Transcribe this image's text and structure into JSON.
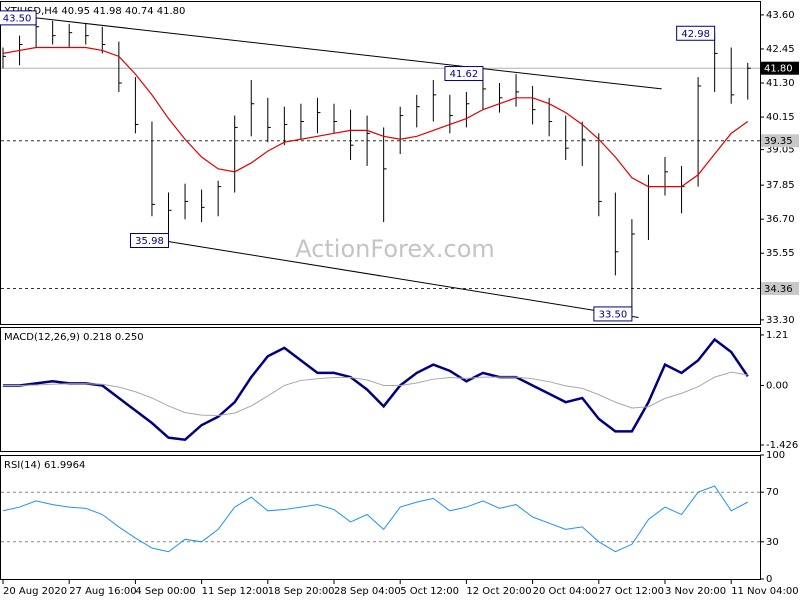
{
  "chart_data": [
    {
      "type": "ohlc",
      "title": "XTIUSD,H4  40.95 41.98 40.74 41.80",
      "watermark": "ActionForex.com",
      "categories": [
        "20 Aug 2020",
        null,
        null,
        null,
        "27 Aug 16:00",
        null,
        null,
        null,
        "4 Sep 00:00",
        null,
        null,
        null,
        "11 Sep 12:00",
        null,
        null,
        null,
        "18 Sep 20:00",
        null,
        null,
        null,
        "28 Sep 04:00",
        null,
        null,
        null,
        "5 Oct 12:00",
        null,
        null,
        null,
        "12 Oct 20:00",
        null,
        null,
        null,
        "20 Oct 04:00",
        null,
        null,
        null,
        "27 Oct 12:00",
        null,
        null,
        null,
        "3 Nov 20:00",
        null,
        null,
        null,
        "11 Nov 04:00",
        null
      ],
      "high": [
        42.5,
        42.9,
        43.5,
        43.4,
        43.3,
        43.3,
        43.2,
        42.7,
        41.5,
        40.0,
        37.6,
        37.9,
        37.7,
        38.0,
        40.2,
        41.4,
        40.8,
        40.5,
        40.6,
        40.8,
        40.6,
        40.4,
        40.2,
        39.8,
        40.5,
        40.9,
        41.4,
        40.9,
        41.0,
        41.62,
        41.3,
        41.6,
        41.2,
        40.8,
        40.2,
        40.0,
        39.6,
        37.6,
        36.7,
        38.2,
        38.8,
        38.5,
        41.5,
        42.98,
        42.5,
        41.98
      ],
      "low": [
        41.8,
        41.9,
        42.5,
        42.6,
        42.5,
        42.6,
        42.3,
        41.0,
        39.6,
        36.8,
        35.98,
        36.7,
        36.6,
        36.8,
        37.6,
        39.5,
        39.3,
        39.2,
        39.4,
        39.6,
        39.6,
        38.7,
        38.5,
        36.6,
        38.9,
        39.8,
        40.0,
        39.6,
        39.8,
        40.4,
        40.3,
        40.5,
        39.9,
        39.5,
        38.7,
        38.5,
        36.8,
        34.8,
        33.5,
        36.0,
        37.5,
        36.9,
        37.8,
        41.0,
        40.6,
        40.74
      ],
      "close": [
        42.2,
        42.6,
        43.2,
        42.9,
        43.0,
        42.9,
        42.6,
        41.3,
        39.9,
        37.2,
        37.0,
        37.3,
        37.1,
        37.8,
        39.8,
        40.6,
        39.8,
        39.9,
        40.0,
        40.3,
        40.0,
        39.2,
        39.6,
        38.4,
        40.2,
        40.5,
        40.9,
        40.2,
        40.6,
        41.1,
        40.8,
        41.0,
        40.4,
        40.0,
        39.1,
        39.4,
        37.3,
        35.6,
        36.2,
        37.8,
        38.3,
        37.8,
        41.2,
        42.3,
        40.9,
        41.8
      ],
      "bar_color": "#000000",
      "ma": {
        "color": "#e00000",
        "values": [
          42.3,
          42.4,
          42.5,
          42.5,
          42.5,
          42.5,
          42.4,
          42.2,
          41.6,
          40.9,
          40.1,
          39.4,
          38.8,
          38.4,
          38.3,
          38.6,
          39.0,
          39.3,
          39.4,
          39.5,
          39.6,
          39.7,
          39.7,
          39.5,
          39.4,
          39.5,
          39.7,
          39.9,
          40.1,
          40.4,
          40.6,
          40.8,
          40.8,
          40.6,
          40.3,
          39.9,
          39.4,
          38.8,
          38.1,
          37.8,
          37.8,
          37.8,
          38.2,
          38.9,
          39.6,
          40.0
        ]
      },
      "ylim": [
        33.16,
        44.07
      ],
      "yticks": [
        {
          "value": 43.6,
          "label": "43.60"
        },
        42.45,
        {
          "value": 41.3,
          "label": "41.30"
        },
        40.15,
        39.05,
        37.85,
        {
          "value": 36.7,
          "label": "36.70"
        },
        35.55,
        {
          "value": 33.3,
          "label": "33.30"
        }
      ],
      "levels": [
        39.35,
        34.36
      ],
      "last_price": {
        "value": 41.8,
        "label": "41.80"
      },
      "trendlines": [
        {
          "x": [
            2,
            39.8
          ],
          "y": [
            43.5,
            41.1
          ]
        },
        {
          "x": [
            9.6,
            38.4
          ],
          "y": [
            35.98,
            33.38
          ]
        }
      ],
      "annotations": [
        {
          "index": 2,
          "value": 43.5,
          "label": "43.50"
        },
        {
          "index": 43,
          "value": 42.98
        },
        {
          "index": 29,
          "value": 41.62
        },
        {
          "index": 10,
          "value": 35.98
        },
        {
          "index": 38,
          "value": 33.5,
          "label": "33.50"
        }
      ]
    },
    {
      "type": "line",
      "title": "MACD(12,26,9) 0.218 0.250",
      "series": [
        {
          "color": "#000080",
          "width": 2.5,
          "values": [
            0.0,
            0.0,
            0.05,
            0.1,
            0.05,
            0.05,
            0.0,
            -0.3,
            -0.6,
            -0.9,
            -1.25,
            -1.3,
            -0.95,
            -0.75,
            -0.4,
            0.2,
            0.7,
            0.9,
            0.6,
            0.3,
            0.3,
            0.2,
            -0.1,
            -0.5,
            0.0,
            0.3,
            0.5,
            0.35,
            0.1,
            0.3,
            0.2,
            0.2,
            0.0,
            -0.2,
            -0.4,
            -0.3,
            -0.8,
            -1.1,
            -1.1,
            -0.4,
            0.5,
            0.3,
            0.6,
            1.1,
            0.8,
            0.218
          ]
        },
        {
          "color": "#a8a8a8",
          "width": 1,
          "values": [
            0.0,
            0.0,
            0.01,
            0.03,
            0.04,
            0.04,
            0.03,
            -0.04,
            -0.15,
            -0.3,
            -0.49,
            -0.65,
            -0.71,
            -0.72,
            -0.66,
            -0.49,
            -0.25,
            0.0,
            0.12,
            0.16,
            0.19,
            0.19,
            0.13,
            0.0,
            0.0,
            0.06,
            0.15,
            0.19,
            0.17,
            0.2,
            0.2,
            0.2,
            0.16,
            0.09,
            -0.01,
            -0.07,
            -0.22,
            -0.4,
            -0.54,
            -0.51,
            -0.31,
            -0.19,
            -0.03,
            0.2,
            0.32,
            0.25
          ]
        }
      ],
      "ylim": [
        -1.57,
        1.4
      ],
      "yticks": [
        1.21,
        {
          "value": 0,
          "label": "0.00"
        },
        -1.426
      ]
    },
    {
      "type": "line",
      "title": "RSI(14) 61.9964",
      "series": [
        {
          "color": "#1e90ff",
          "width": 1,
          "values": [
            55,
            58,
            63,
            60,
            58,
            57,
            52,
            42,
            33,
            25,
            22,
            32,
            30,
            40,
            58,
            66,
            55,
            56,
            58,
            60,
            56,
            46,
            52,
            40,
            58,
            62,
            65,
            55,
            58,
            63,
            57,
            60,
            50,
            45,
            40,
            42,
            30,
            22,
            28,
            48,
            58,
            52,
            70,
            75,
            55,
            61.9964
          ]
        }
      ],
      "ylim": [
        0,
        100
      ],
      "yticks": [
        100,
        70,
        30,
        0
      ],
      "levels": [
        70,
        30
      ]
    }
  ]
}
